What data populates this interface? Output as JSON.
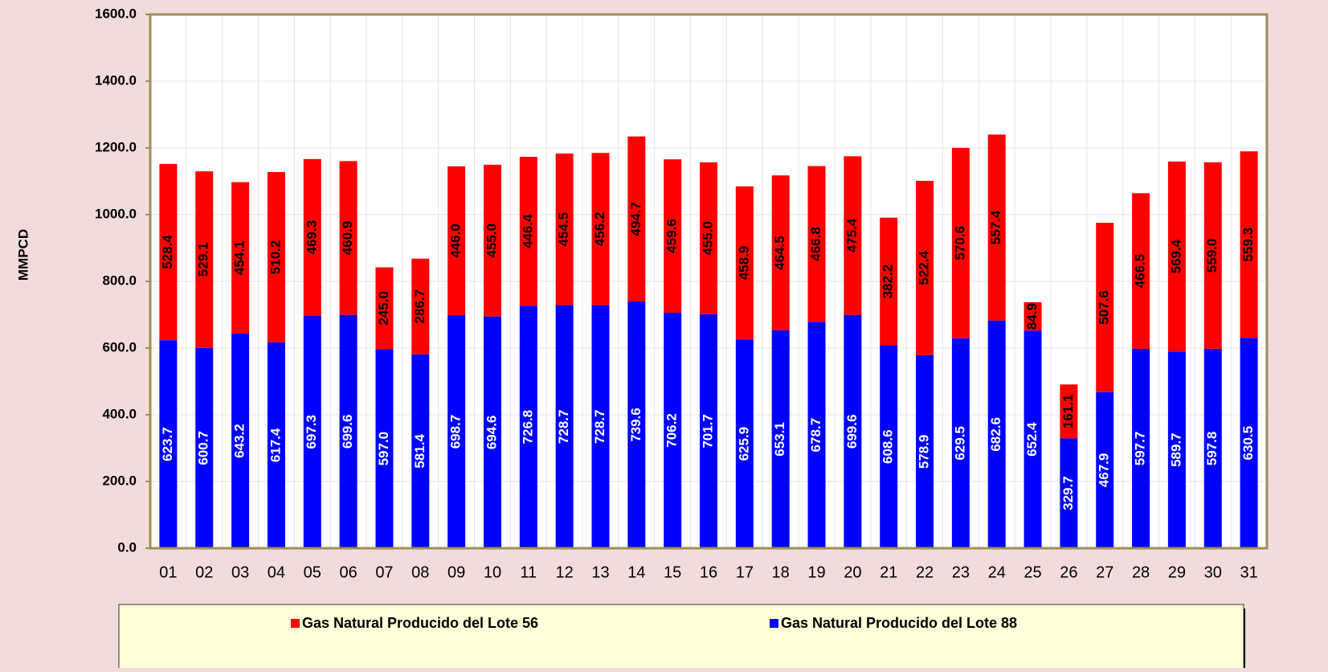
{
  "chart_data": {
    "type": "stacked_bar",
    "y_axis_label": "MMPCD",
    "categories": [
      "01",
      "02",
      "03",
      "04",
      "05",
      "06",
      "07",
      "08",
      "09",
      "10",
      "11",
      "12",
      "13",
      "14",
      "15",
      "16",
      "17",
      "18",
      "19",
      "20",
      "21",
      "22",
      "23",
      "24",
      "25",
      "26",
      "27",
      "28",
      "29",
      "30",
      "31"
    ],
    "series": [
      {
        "name": "Gas Natural Producido del Lote 88",
        "color": "#0000ff",
        "values": [
          623.7,
          600.7,
          643.2,
          617.4,
          697.3,
          699.6,
          597.0,
          581.4,
          698.7,
          694.6,
          726.8,
          728.7,
          728.7,
          739.6,
          706.2,
          701.7,
          625.9,
          653.1,
          678.7,
          699.6,
          608.6,
          578.9,
          629.5,
          682.6,
          652.4,
          329.7,
          467.9,
          597.7,
          589.7,
          597.8,
          630.5
        ],
        "value_labels": [
          "623.7",
          "600.7",
          "643.2",
          "617.4",
          "697.3",
          "699.6",
          "597.0",
          "581.4",
          "698.7",
          "694.6",
          "726.8",
          "728.7",
          "728.7",
          "739.6",
          "706.2",
          "701.7",
          "625.9",
          "653.1",
          "678.7",
          "699.6",
          "608.6",
          "578.9",
          "629.5",
          "682.6",
          "652.4",
          "329.7",
          "467.9",
          "597.7",
          "589.7",
          "597.8",
          "630.5"
        ]
      },
      {
        "name": "Gas Natural Producido del Lote 56",
        "color": "#ff0000",
        "values": [
          528.4,
          529.1,
          454.1,
          510.2,
          469.3,
          460.9,
          245.0,
          286.7,
          446.0,
          455.0,
          446.4,
          454.5,
          456.2,
          494.7,
          459.6,
          455.0,
          458.9,
          464.5,
          466.8,
          475.4,
          382.2,
          522.4,
          570.6,
          557.4,
          84.9,
          161.1,
          507.6,
          466.5,
          569.4,
          559.0,
          559.3
        ],
        "value_labels": [
          "528.4",
          "529.1",
          "454.1",
          "510.2",
          "469.3",
          "460.9",
          "245.0",
          "286.7",
          "446.0",
          "455.0",
          "446.4",
          "454.5",
          "456.2",
          "494.7",
          "459.6",
          "455.0",
          "458.9",
          "464.5",
          "466.8",
          "475.4",
          "382.2",
          "522.4",
          "570.6",
          "557.4",
          "84.9",
          "161.1",
          "507.6",
          "466.5",
          "569.4",
          "559.0",
          "559.3"
        ]
      }
    ],
    "ylim": [
      0,
      1600
    ],
    "yticks": [
      {
        "value": 0,
        "label": "0.0"
      },
      {
        "value": 200,
        "label": "200.0"
      },
      {
        "value": 400,
        "label": "400.0"
      },
      {
        "value": 600,
        "label": "600.0"
      },
      {
        "value": 800,
        "label": "800.0"
      },
      {
        "value": 1000,
        "label": "1000.0"
      },
      {
        "value": 1200,
        "label": "1200.0"
      },
      {
        "value": 1400,
        "label": "1400.0"
      },
      {
        "value": 1600,
        "label": "1600.0"
      }
    ],
    "grid": true,
    "legend": "bottom"
  }
}
